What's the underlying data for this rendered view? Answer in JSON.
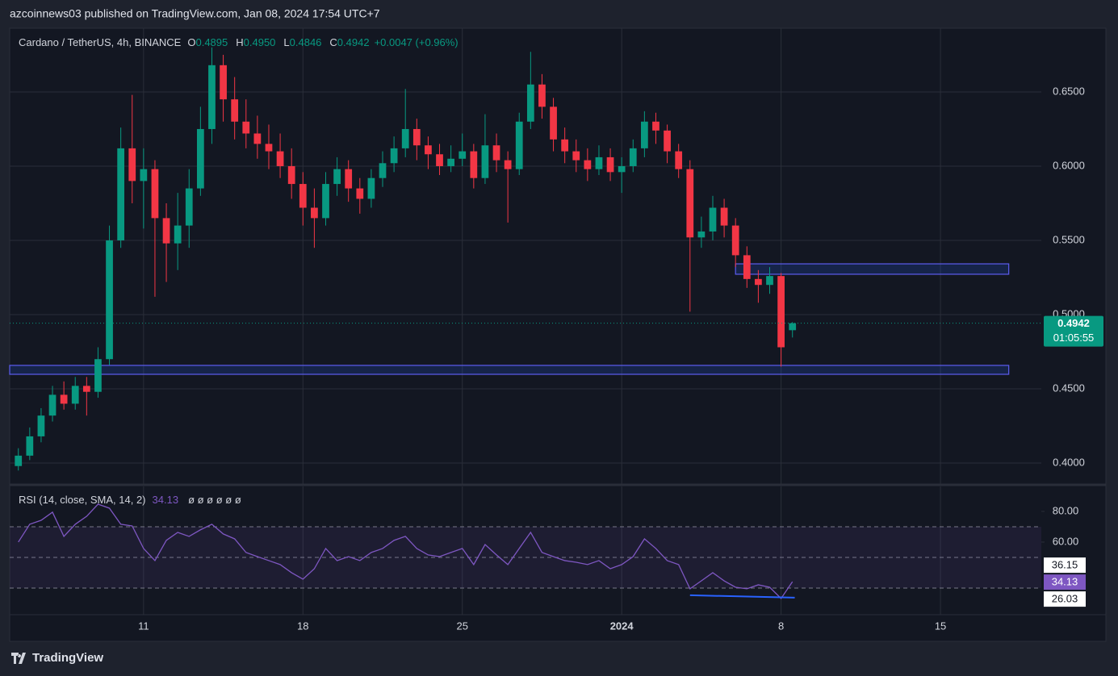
{
  "header": {
    "text": "azcoinnews03 published on TradingView.com, Jan 08, 2024 17:54 UTC+7"
  },
  "chart_data": [
    {
      "type": "candlestick",
      "symbol": "Cardano / TetherUS, 4h, BINANCE",
      "legend": [
        {
          "key": "O",
          "value": "0.4895"
        },
        {
          "key": "H",
          "value": "0.4950"
        },
        {
          "key": "L",
          "value": "0.4846"
        },
        {
          "key": "C",
          "value": "0.4942"
        }
      ],
      "change": "+0.0047 (+0.96%)",
      "up_color": "#089981",
      "down_color": "#f23645",
      "x": [
        5.5,
        6,
        6.5,
        7,
        7.5,
        8,
        8.5,
        9,
        9.5,
        10,
        10.5,
        11,
        11.5,
        12,
        12.5,
        13,
        13.5,
        14,
        14.5,
        15,
        15.5,
        16,
        16.5,
        17,
        17.5,
        18,
        18.5,
        19,
        19.5,
        20,
        20.5,
        21,
        21.5,
        22,
        22.5,
        23,
        23.5,
        24,
        24.5,
        25,
        25.5,
        26,
        26.5,
        27,
        27.5,
        28,
        28.5,
        29,
        29.5,
        30,
        30.5,
        31,
        31.5,
        32,
        32.5,
        33,
        33.5,
        34,
        34.5,
        35,
        35.5,
        36,
        36.5,
        37,
        37.5,
        38,
        38.5,
        39,
        39.5
      ],
      "candles": [
        [
          0.398,
          0.41,
          0.395,
          0.405
        ],
        [
          0.405,
          0.424,
          0.402,
          0.418
        ],
        [
          0.418,
          0.437,
          0.414,
          0.432
        ],
        [
          0.432,
          0.452,
          0.428,
          0.446
        ],
        [
          0.446,
          0.455,
          0.436,
          0.44
        ],
        [
          0.44,
          0.458,
          0.436,
          0.452
        ],
        [
          0.452,
          0.458,
          0.432,
          0.448
        ],
        [
          0.448,
          0.478,
          0.444,
          0.47
        ],
        [
          0.47,
          0.56,
          0.466,
          0.55
        ],
        [
          0.55,
          0.626,
          0.545,
          0.612
        ],
        [
          0.612,
          0.648,
          0.575,
          0.59
        ],
        [
          0.59,
          0.612,
          0.558,
          0.598
        ],
        [
          0.598,
          0.604,
          0.512,
          0.565
        ],
        [
          0.565,
          0.575,
          0.522,
          0.548
        ],
        [
          0.548,
          0.582,
          0.53,
          0.56
        ],
        [
          0.56,
          0.598,
          0.545,
          0.585
        ],
        [
          0.585,
          0.64,
          0.58,
          0.625
        ],
        [
          0.625,
          0.68,
          0.615,
          0.668
        ],
        [
          0.668,
          0.675,
          0.63,
          0.645
        ],
        [
          0.645,
          0.66,
          0.618,
          0.63
        ],
        [
          0.63,
          0.645,
          0.612,
          0.622
        ],
        [
          0.622,
          0.634,
          0.605,
          0.615
        ],
        [
          0.615,
          0.628,
          0.598,
          0.61
        ],
        [
          0.61,
          0.622,
          0.592,
          0.6
        ],
        [
          0.6,
          0.612,
          0.578,
          0.588
        ],
        [
          0.588,
          0.596,
          0.56,
          0.572
        ],
        [
          0.572,
          0.585,
          0.545,
          0.565
        ],
        [
          0.565,
          0.596,
          0.56,
          0.588
        ],
        [
          0.588,
          0.606,
          0.58,
          0.598
        ],
        [
          0.598,
          0.604,
          0.576,
          0.585
        ],
        [
          0.585,
          0.592,
          0.568,
          0.578
        ],
        [
          0.578,
          0.598,
          0.572,
          0.592
        ],
        [
          0.592,
          0.61,
          0.586,
          0.602
        ],
        [
          0.602,
          0.62,
          0.596,
          0.612
        ],
        [
          0.612,
          0.652,
          0.606,
          0.625
        ],
        [
          0.625,
          0.632,
          0.604,
          0.614
        ],
        [
          0.614,
          0.62,
          0.598,
          0.608
        ],
        [
          0.608,
          0.615,
          0.594,
          0.6
        ],
        [
          0.6,
          0.614,
          0.596,
          0.605
        ],
        [
          0.605,
          0.622,
          0.6,
          0.61
        ],
        [
          0.61,
          0.615,
          0.585,
          0.592
        ],
        [
          0.592,
          0.635,
          0.588,
          0.614
        ],
        [
          0.614,
          0.622,
          0.596,
          0.604
        ],
        [
          0.604,
          0.61,
          0.562,
          0.598
        ],
        [
          0.598,
          0.636,
          0.594,
          0.63
        ],
        [
          0.63,
          0.677,
          0.625,
          0.655
        ],
        [
          0.655,
          0.662,
          0.632,
          0.64
        ],
        [
          0.64,
          0.646,
          0.61,
          0.618
        ],
        [
          0.618,
          0.626,
          0.602,
          0.61
        ],
        [
          0.61,
          0.618,
          0.596,
          0.604
        ],
        [
          0.604,
          0.612,
          0.59,
          0.598
        ],
        [
          0.598,
          0.614,
          0.594,
          0.606
        ],
        [
          0.606,
          0.612,
          0.59,
          0.596
        ],
        [
          0.596,
          0.606,
          0.582,
          0.6
        ],
        [
          0.6,
          0.618,
          0.596,
          0.612
        ],
        [
          0.612,
          0.637,
          0.606,
          0.63
        ],
        [
          0.63,
          0.636,
          0.615,
          0.624
        ],
        [
          0.624,
          0.628,
          0.602,
          0.61
        ],
        [
          0.61,
          0.615,
          0.592,
          0.598
        ],
        [
          0.598,
          0.604,
          0.502,
          0.552
        ],
        [
          0.552,
          0.566,
          0.545,
          0.556
        ],
        [
          0.556,
          0.58,
          0.55,
          0.572
        ],
        [
          0.572,
          0.578,
          0.552,
          0.56
        ],
        [
          0.56,
          0.565,
          0.532,
          0.54
        ],
        [
          0.54,
          0.546,
          0.518,
          0.524
        ],
        [
          0.524,
          0.53,
          0.508,
          0.52
        ],
        [
          0.52,
          0.532,
          0.514,
          0.526
        ],
        [
          0.526,
          0.528,
          0.465,
          0.478
        ],
        [
          0.4895,
          0.495,
          0.4846,
          0.4942
        ]
      ],
      "xlim": [
        5.12,
        50.43
      ],
      "xticks": [
        11,
        18,
        25,
        {
          "value": 32,
          "label": "2024"
        },
        8,
        15
      ],
      "ylim": [
        0.3859,
        0.6929
      ],
      "yticks": [
        {
          "value": 0.4,
          "label": "0.4000"
        },
        {
          "value": 0.45,
          "label": "0.4500"
        },
        {
          "value": 0.5,
          "label": "0.5000"
        },
        {
          "value": 0.55,
          "label": "0.5500"
        },
        {
          "value": 0.6,
          "label": "0.6000"
        },
        {
          "value": 0.65,
          "label": "0.6500"
        }
      ],
      "grid": true,
      "zones": [
        {
          "x": [
            5.12,
            49.0
          ],
          "y": [
            0.4598,
            0.4658
          ]
        },
        {
          "x": [
            37.0,
            49.0
          ],
          "y": [
            0.5272,
            0.5342
          ]
        }
      ],
      "last_price_label": "0.4942",
      "countdown": "01:05:55"
    },
    {
      "type": "line",
      "title": "RSI (14, close, SMA, 14, 2)",
      "extra": "ø ø ø ø ø ø",
      "color": "#7e57c2",
      "values": [
        60,
        71.6,
        74.2,
        79.5,
        63.7,
        71.6,
        76.8,
        84.7,
        82.1,
        71.6,
        70.5,
        55.8,
        47.9,
        61.1,
        66.3,
        63.7,
        68.0,
        71.6,
        65.3,
        62.1,
        53.2,
        50.5,
        47.9,
        45.3,
        40,
        35.8,
        42.6,
        55.8,
        47.9,
        50.5,
        47.9,
        53.2,
        55.8,
        61.1,
        63.7,
        55.8,
        51.6,
        50.5,
        53.2,
        55.8,
        45.3,
        58.4,
        51.6,
        45.3,
        55.8,
        66.3,
        53.2,
        50.5,
        47.9,
        46.8,
        45.3,
        47.9,
        42.6,
        45.3,
        50.5,
        62.1,
        55.8,
        47.9,
        45.3,
        29.5,
        34.7,
        40,
        34.7,
        30.5,
        29.5,
        32.1,
        30.5,
        23.2,
        34.13
      ],
      "ylim": [
        12.6,
        96.3
      ],
      "yticks": [
        {
          "value": 80,
          "label": "80.00"
        },
        {
          "value": 60,
          "label": "60.00"
        }
      ],
      "bands": [
        70,
        50,
        30
      ],
      "side_labels": [
        36.15,
        26.03
      ],
      "trendline": {
        "x": [
          35.0,
          39.6
        ],
        "y": [
          25.3,
          23.7
        ],
        "color": "#2962ff"
      }
    }
  ],
  "footer": {
    "brand": "TradingView"
  }
}
